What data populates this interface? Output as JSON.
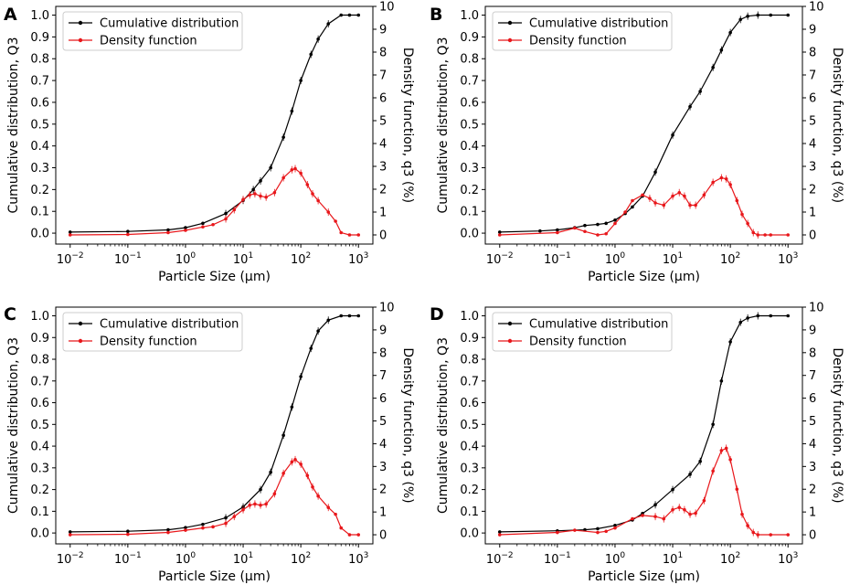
{
  "chart_data": [
    {
      "panel": "A",
      "type": "line",
      "xlabel": "Particle Size (µm)",
      "ylabel": "Cumulative distribution, Q3",
      "y2label": "Density function, q3 (%)",
      "xscale": "log",
      "xlim": [
        0.01,
        1000
      ],
      "ylim": [
        0.0,
        1.0
      ],
      "y2lim": [
        0,
        10
      ],
      "x_tick_labels": [
        {
          "base": "10",
          "exp": "−2"
        },
        {
          "base": "10",
          "exp": "−1"
        },
        {
          "base": "10",
          "exp": "0"
        },
        {
          "base": "10",
          "exp": "1"
        },
        {
          "base": "10",
          "exp": "2"
        },
        {
          "base": "10",
          "exp": "3"
        }
      ],
      "y_tick_labels": [
        "0.0",
        "0.1",
        "0.2",
        "0.3",
        "0.4",
        "0.5",
        "0.6",
        "0.7",
        "0.8",
        "0.9",
        "1.0"
      ],
      "y2_tick_labels": [
        "0",
        "1",
        "2",
        "3",
        "4",
        "5",
        "6",
        "7",
        "8",
        "9",
        "10"
      ],
      "legend": {
        "placement": "top-left",
        "entries": [
          "Cumulative distribution",
          "Density function"
        ]
      },
      "colors": {
        "cumulative": "#000000",
        "density": "#e8171b"
      },
      "series": [
        {
          "name": "Cumulative distribution",
          "axis": "left",
          "x": [
            0.01,
            0.1,
            0.5,
            1,
            2,
            5,
            10,
            15,
            20,
            30,
            50,
            70,
            100,
            150,
            200,
            300,
            500,
            700,
            1000
          ],
          "y": [
            0.005,
            0.008,
            0.015,
            0.025,
            0.045,
            0.09,
            0.15,
            0.2,
            0.24,
            0.3,
            0.44,
            0.56,
            0.7,
            0.82,
            0.89,
            0.96,
            1.0,
            1.0,
            1.0
          ]
        },
        {
          "name": "Density function",
          "axis": "right",
          "x": [
            0.01,
            0.1,
            0.5,
            1,
            2,
            3,
            5,
            7,
            10,
            13,
            16,
            20,
            25,
            35,
            50,
            70,
            80,
            100,
            130,
            160,
            200,
            300,
            400,
            500,
            700,
            1000
          ],
          "y": [
            0,
            0.02,
            0.1,
            0.2,
            0.35,
            0.45,
            0.7,
            1.1,
            1.55,
            1.75,
            1.8,
            1.7,
            1.65,
            1.85,
            2.5,
            2.85,
            2.9,
            2.7,
            2.2,
            1.8,
            1.5,
            1.0,
            0.6,
            0.1,
            0,
            0
          ]
        }
      ]
    },
    {
      "panel": "B",
      "type": "line",
      "xlabel": "Particle Size (µm)",
      "ylabel": "Cumulative distribution, Q3",
      "y2label": "Density function, q3 (%)",
      "xscale": "log",
      "xlim": [
        0.01,
        1000
      ],
      "ylim": [
        0.0,
        1.0
      ],
      "y2lim": [
        0,
        10
      ],
      "x_tick_labels": [
        {
          "base": "10",
          "exp": "−2"
        },
        {
          "base": "10",
          "exp": "−1"
        },
        {
          "base": "10",
          "exp": "0"
        },
        {
          "base": "10",
          "exp": "1"
        },
        {
          "base": "10",
          "exp": "2"
        },
        {
          "base": "10",
          "exp": "3"
        }
      ],
      "y_tick_labels": [
        "0.0",
        "0.1",
        "0.2",
        "0.3",
        "0.4",
        "0.5",
        "0.6",
        "0.7",
        "0.8",
        "0.9",
        "1.0"
      ],
      "y2_tick_labels": [
        "0",
        "1",
        "2",
        "3",
        "4",
        "5",
        "6",
        "7",
        "8",
        "9",
        "10"
      ],
      "legend": {
        "placement": "top-left",
        "entries": [
          "Cumulative distribution",
          "Density function"
        ]
      },
      "colors": {
        "cumulative": "#000000",
        "density": "#e8171b"
      },
      "series": [
        {
          "name": "Cumulative distribution",
          "axis": "left",
          "x": [
            0.01,
            0.05,
            0.1,
            0.2,
            0.3,
            0.5,
            0.7,
            1,
            1.5,
            2,
            3,
            5,
            10,
            20,
            30,
            50,
            70,
            100,
            150,
            200,
            300,
            500,
            1000
          ],
          "y": [
            0.005,
            0.01,
            0.015,
            0.025,
            0.035,
            0.04,
            0.045,
            0.06,
            0.09,
            0.12,
            0.17,
            0.28,
            0.45,
            0.58,
            0.65,
            0.76,
            0.84,
            0.92,
            0.98,
            0.995,
            1.0,
            1.0,
            1.0
          ]
        },
        {
          "name": "Density function",
          "axis": "right",
          "x": [
            0.01,
            0.1,
            0.2,
            0.3,
            0.5,
            0.7,
            1,
            1.5,
            2,
            3,
            4,
            5,
            7,
            10,
            13,
            16,
            20,
            25,
            35,
            50,
            70,
            85,
            100,
            130,
            160,
            200,
            250,
            300,
            400,
            500,
            1000
          ],
          "y": [
            0,
            0.1,
            0.3,
            0.15,
            0,
            0.05,
            0.5,
            1.0,
            1.5,
            1.75,
            1.6,
            1.4,
            1.3,
            1.7,
            1.85,
            1.7,
            1.3,
            1.3,
            1.75,
            2.3,
            2.5,
            2.45,
            2.2,
            1.5,
            0.9,
            0.5,
            0.1,
            0,
            0,
            0,
            0
          ]
        }
      ]
    },
    {
      "panel": "C",
      "type": "line",
      "xlabel": "Particle Size (µm)",
      "ylabel": "Cumulative distribution, Q3",
      "y2label": "Density function, q3 (%)",
      "xscale": "log",
      "xlim": [
        0.01,
        1000
      ],
      "ylim": [
        0.0,
        1.0
      ],
      "y2lim": [
        0,
        10
      ],
      "x_tick_labels": [
        {
          "base": "10",
          "exp": "−2"
        },
        {
          "base": "10",
          "exp": "−1"
        },
        {
          "base": "10",
          "exp": "0"
        },
        {
          "base": "10",
          "exp": "1"
        },
        {
          "base": "10",
          "exp": "2"
        },
        {
          "base": "10",
          "exp": "3"
        }
      ],
      "y_tick_labels": [
        "0.0",
        "0.1",
        "0.2",
        "0.3",
        "0.4",
        "0.5",
        "0.6",
        "0.7",
        "0.8",
        "0.9",
        "1.0"
      ],
      "y2_tick_labels": [
        "0",
        "1",
        "2",
        "3",
        "4",
        "5",
        "6",
        "7",
        "8",
        "9",
        "10"
      ],
      "legend": {
        "placement": "top-left",
        "entries": [
          "Cumulative distribution",
          "Density function"
        ]
      },
      "colors": {
        "cumulative": "#000000",
        "density": "#e8171b"
      },
      "series": [
        {
          "name": "Cumulative distribution",
          "axis": "left",
          "x": [
            0.01,
            0.1,
            0.5,
            1,
            2,
            5,
            10,
            20,
            30,
            50,
            70,
            100,
            150,
            200,
            300,
            500,
            700,
            1000
          ],
          "y": [
            0.005,
            0.008,
            0.015,
            0.025,
            0.04,
            0.07,
            0.12,
            0.2,
            0.28,
            0.45,
            0.58,
            0.72,
            0.85,
            0.93,
            0.98,
            1.0,
            1.0,
            1.0
          ]
        },
        {
          "name": "Density function",
          "axis": "right",
          "x": [
            0.01,
            0.1,
            0.5,
            1,
            2,
            3,
            5,
            7,
            10,
            13,
            16,
            20,
            25,
            35,
            50,
            70,
            80,
            100,
            130,
            160,
            200,
            300,
            400,
            500,
            700,
            1000
          ],
          "y": [
            0,
            0.02,
            0.1,
            0.2,
            0.3,
            0.35,
            0.5,
            0.8,
            1.1,
            1.3,
            1.35,
            1.3,
            1.35,
            1.8,
            2.7,
            3.2,
            3.3,
            3.1,
            2.6,
            2.1,
            1.7,
            1.2,
            0.9,
            0.3,
            0,
            0
          ]
        }
      ]
    },
    {
      "panel": "D",
      "type": "line",
      "xlabel": "Particle Size (µm)",
      "ylabel": "Cumulative distribution, Q3",
      "y2label": "Density function, q3 (%)",
      "xscale": "log",
      "xlim": [
        0.01,
        1000
      ],
      "ylim": [
        0.0,
        1.0
      ],
      "y2lim": [
        0,
        10
      ],
      "x_tick_labels": [
        {
          "base": "10",
          "exp": "−2"
        },
        {
          "base": "10",
          "exp": "−1"
        },
        {
          "base": "10",
          "exp": "0"
        },
        {
          "base": "10",
          "exp": "1"
        },
        {
          "base": "10",
          "exp": "2"
        },
        {
          "base": "10",
          "exp": "3"
        }
      ],
      "y_tick_labels": [
        "0.0",
        "0.1",
        "0.2",
        "0.3",
        "0.4",
        "0.5",
        "0.6",
        "0.7",
        "0.8",
        "0.9",
        "1.0"
      ],
      "y2_tick_labels": [
        "0",
        "1",
        "2",
        "3",
        "4",
        "5",
        "6",
        "7",
        "8",
        "9",
        "10"
      ],
      "legend": {
        "placement": "top-left",
        "entries": [
          "Cumulative distribution",
          "Density function"
        ]
      },
      "colors": {
        "cumulative": "#000000",
        "density": "#e8171b"
      },
      "series": [
        {
          "name": "Cumulative distribution",
          "axis": "left",
          "x": [
            0.01,
            0.1,
            0.3,
            0.5,
            1,
            2,
            3,
            5,
            10,
            20,
            30,
            50,
            70,
            100,
            150,
            200,
            300,
            500,
            1000
          ],
          "y": [
            0.005,
            0.01,
            0.015,
            0.02,
            0.035,
            0.06,
            0.09,
            0.13,
            0.2,
            0.27,
            0.33,
            0.5,
            0.7,
            0.88,
            0.97,
            0.99,
            1.0,
            1.0,
            1.0
          ]
        },
        {
          "name": "Density function",
          "axis": "right",
          "x": [
            0.01,
            0.1,
            0.2,
            0.5,
            0.7,
            1,
            2,
            3,
            5,
            7,
            10,
            13,
            16,
            20,
            25,
            35,
            50,
            70,
            85,
            100,
            130,
            160,
            200,
            250,
            300,
            500,
            1000
          ],
          "y": [
            0,
            0.1,
            0.2,
            0.1,
            0.15,
            0.3,
            0.7,
            0.85,
            0.8,
            0.7,
            1.1,
            1.2,
            1.1,
            0.9,
            0.95,
            1.5,
            2.8,
            3.7,
            3.8,
            3.3,
            2.0,
            0.9,
            0.4,
            0.1,
            0,
            0,
            0
          ]
        }
      ]
    }
  ]
}
